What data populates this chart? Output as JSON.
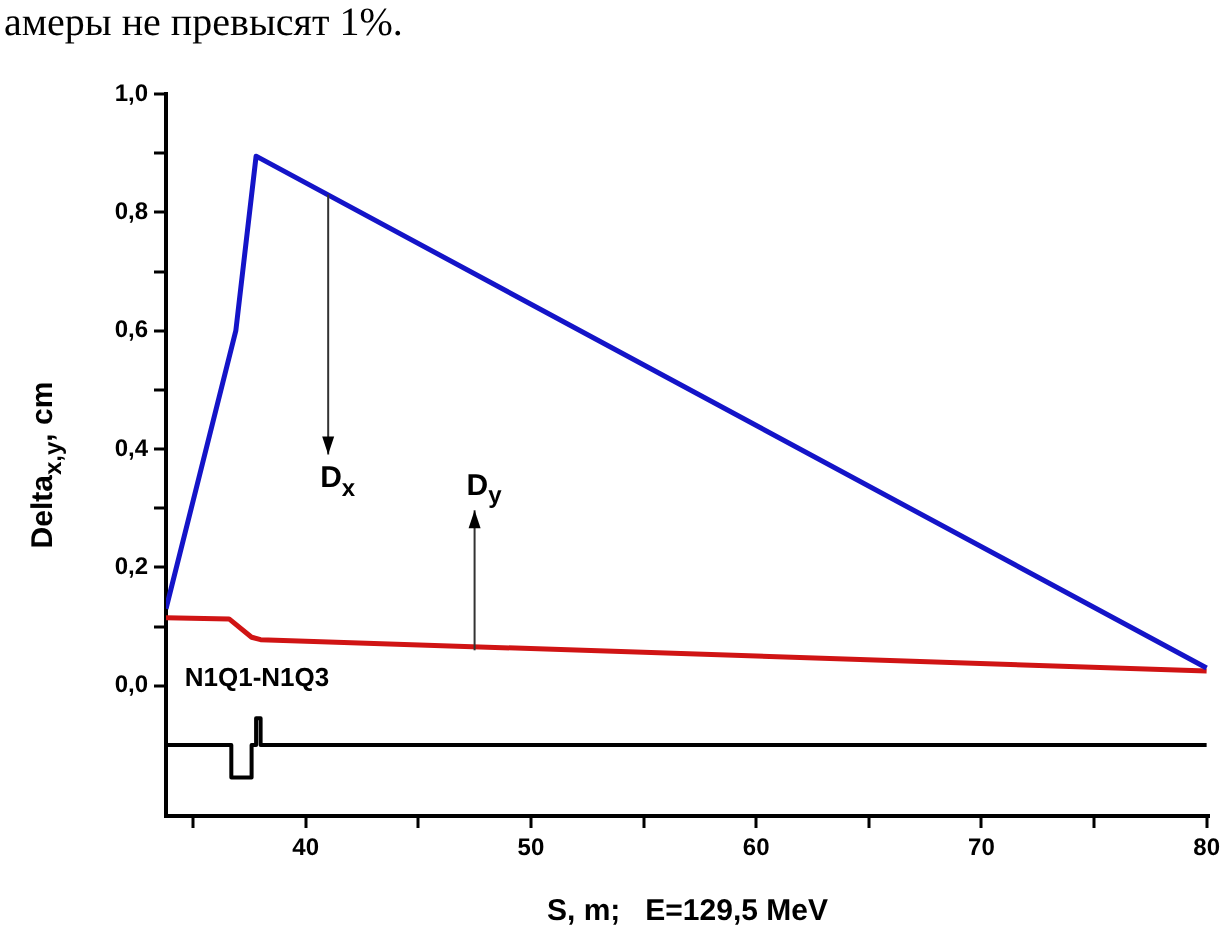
{
  "chart_data": {
    "type": "line",
    "xlabel": "S, m;   E=129,5 MeV",
    "ylabel": "Delta$_{x,y}$, cm",
    "xlim": [
      33.8,
      80.1
    ],
    "ylim": [
      -0.22,
      1.0
    ],
    "xticks": [
      {
        "value": 35,
        "label": null
      },
      40,
      {
        "value": 45,
        "label": null
      },
      50,
      {
        "value": 55,
        "label": null
      },
      60,
      {
        "value": 65,
        "label": null
      },
      70,
      {
        "value": 75,
        "label": null
      },
      80
    ],
    "yticks": [
      {
        "value": 0,
        "label": "0,0"
      },
      {
        "value": 0.1,
        "label": null
      },
      {
        "value": 0.2,
        "label": "0,2"
      },
      {
        "value": 0.3,
        "label": null
      },
      {
        "value": 0.4,
        "label": "0,4"
      },
      {
        "value": 0.5,
        "label": null
      },
      {
        "value": 0.6,
        "label": "0,6"
      },
      {
        "value": 0.7,
        "label": null
      },
      {
        "value": 0.8,
        "label": "0,8"
      },
      {
        "value": 0.9,
        "label": null
      },
      {
        "value": 1.0,
        "label": "1,0"
      }
    ],
    "grid": false,
    "legend": false,
    "marker": "none",
    "line_style": "solid",
    "series": [
      {
        "color": "#1414c8",
        "x": [
          33.8,
          36.9,
          37.8,
          80
        ],
        "values": [
          0.13,
          0.6,
          0.895,
          0.03
        ]
      },
      {
        "color": "#d01414",
        "x": [
          33.8,
          36.6,
          37.6,
          38,
          80
        ],
        "values": [
          0.115,
          0.113,
          0.082,
          0.078,
          0.025
        ]
      },
      {
        "color": "#000000",
        "x": [
          33.8,
          36.7,
          36.7,
          37.6,
          37.6,
          37.8,
          37.8,
          38.0,
          38.0,
          80
        ],
        "values": [
          -0.1,
          -0.1,
          -0.155,
          -0.155,
          -0.1,
          -0.1,
          -0.055,
          -0.055,
          -0.1,
          -0.1
        ]
      }
    ],
    "annotations": [
      "амеры не превысят 1%.",
      {
        "text": "D$_{x}$",
        "x": 41,
        "y": 0.83
      },
      {
        "text": "D$_{y}$",
        "x": 47.5,
        "y": 0.06
      },
      {
        "text": "N1Q1-N1Q3",
        "x": 37.8,
        "y": -0.055
      }
    ]
  }
}
